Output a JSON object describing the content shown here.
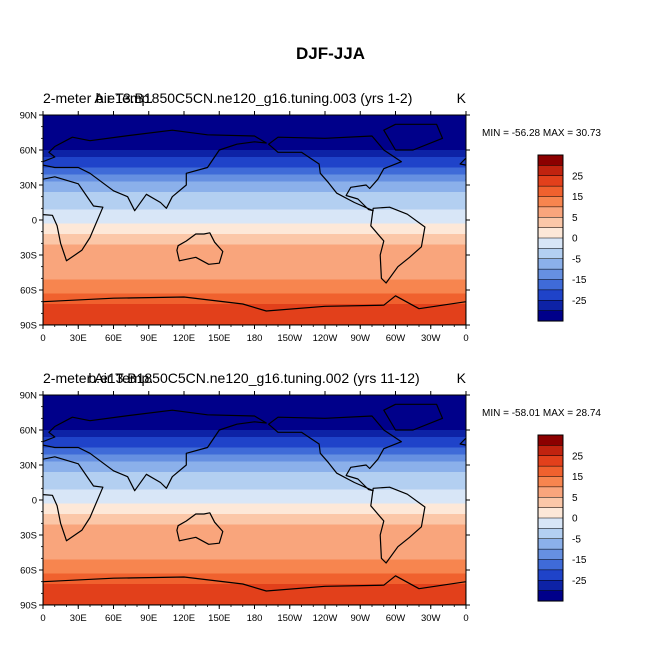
{
  "title": "DJF-JJA",
  "chart_data": [
    {
      "type": "heatmap",
      "left_header": "2-meter Air Temp.",
      "center_header": "b.e13.B1850C5CN.ne120_g16.tuning.003 (yrs 1-2)",
      "units": "K",
      "min_text": "MIN = -56.28 MAX =  30.73",
      "x_ticks": [
        "0",
        "30E",
        "60E",
        "90E",
        "120E",
        "150E",
        "180",
        "150W",
        "120W",
        "90W",
        "60W",
        "30W",
        "0"
      ],
      "y_ticks": [
        "90N",
        "60N",
        "30N",
        "0",
        "30S",
        "60S",
        "90S"
      ],
      "colorbar_labels": [
        "25",
        "15",
        "5",
        "0",
        "-5",
        "-15",
        "-25"
      ],
      "zonal_profile": [
        {
          "lat": 90,
          "value": -40
        },
        {
          "lat": 75,
          "value": -40
        },
        {
          "lat": 60,
          "value": -30
        },
        {
          "lat": 45,
          "value": -20
        },
        {
          "lat": 30,
          "value": -7
        },
        {
          "lat": 15,
          "value": -3
        },
        {
          "lat": 0,
          "value": -1
        },
        {
          "lat": -15,
          "value": 3
        },
        {
          "lat": -30,
          "value": 7
        },
        {
          "lat": -45,
          "value": 8
        },
        {
          "lat": -60,
          "value": 12
        },
        {
          "lat": -75,
          "value": 22
        },
        {
          "lat": -90,
          "value": 25
        }
      ]
    },
    {
      "type": "heatmap",
      "left_header": "2-meter Air Temp.",
      "center_header": "b.e13.B1850C5CN.ne120_g16.tuning.002 (yrs 11-12)",
      "units": "K",
      "min_text": "MIN = -58.01 MAX =  28.74",
      "x_ticks": [
        "0",
        "30E",
        "60E",
        "90E",
        "120E",
        "150E",
        "180",
        "150W",
        "120W",
        "90W",
        "60W",
        "30W",
        "0"
      ],
      "y_ticks": [
        "90N",
        "60N",
        "30N",
        "0",
        "30S",
        "60S",
        "90S"
      ],
      "colorbar_labels": [
        "25",
        "15",
        "5",
        "0",
        "-5",
        "-15",
        "-25"
      ],
      "zonal_profile": [
        {
          "lat": 90,
          "value": -40
        },
        {
          "lat": 75,
          "value": -40
        },
        {
          "lat": 60,
          "value": -30
        },
        {
          "lat": 45,
          "value": -20
        },
        {
          "lat": 30,
          "value": -7
        },
        {
          "lat": 15,
          "value": -3
        },
        {
          "lat": 0,
          "value": -1
        },
        {
          "lat": -15,
          "value": 3
        },
        {
          "lat": -30,
          "value": 7
        },
        {
          "lat": -45,
          "value": 8
        },
        {
          "lat": -60,
          "value": 12
        },
        {
          "lat": -75,
          "value": 22
        },
        {
          "lat": -90,
          "value": 25
        }
      ]
    }
  ],
  "colorbar": {
    "levels": [
      30,
      25,
      20,
      15,
      10,
      5,
      2,
      0,
      -2,
      -5,
      -10,
      -15,
      -20,
      -25,
      -30
    ],
    "colors": [
      "#8c0000",
      "#c1230f",
      "#e2401b",
      "#f0612e",
      "#f7854f",
      "#f9a57c",
      "#fbc7a8",
      "#fde8d8",
      "#d8e6f7",
      "#b3cff1",
      "#8bb0ea",
      "#6690e1",
      "#3f6bd8",
      "#1f43c9",
      "#0d22a6",
      "#00008a"
    ]
  }
}
